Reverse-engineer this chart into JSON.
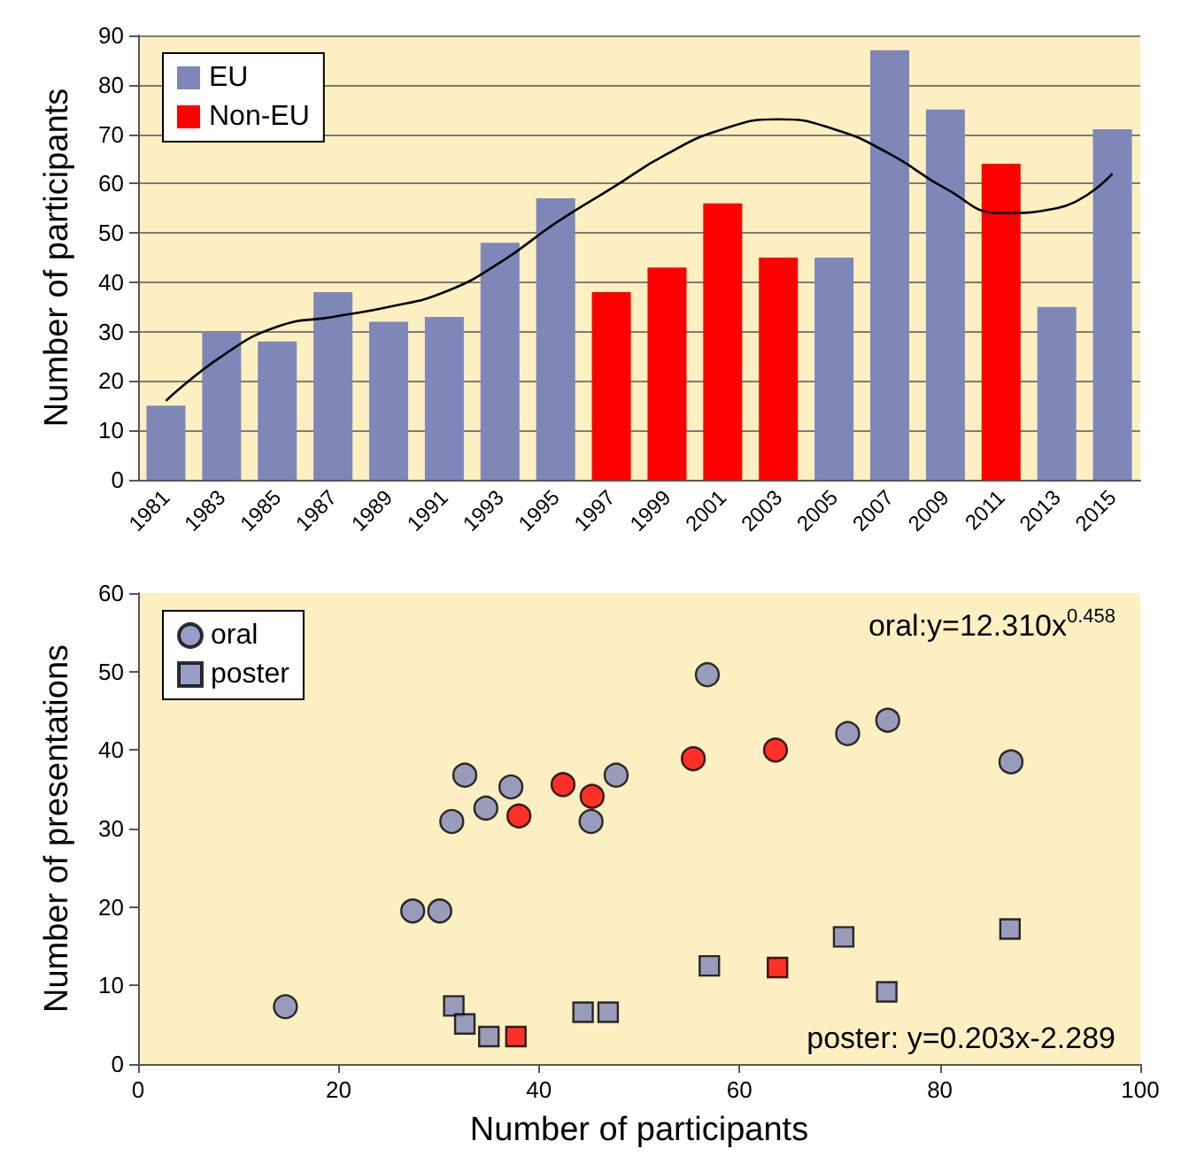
{
  "chart_data": [
    {
      "type": "bar",
      "ylabel": "Number of participants",
      "categories": [
        "1981",
        "1983",
        "1985",
        "1987",
        "1989",
        "1991",
        "1993",
        "1995",
        "1997",
        "1999",
        "2001",
        "2003",
        "2005",
        "2007",
        "2009",
        "2011",
        "2013",
        "2015"
      ],
      "series": [
        {
          "name": "EU",
          "color": "#7f86b8",
          "values": [
            15,
            30,
            28,
            38,
            32,
            33,
            48,
            57,
            null,
            null,
            null,
            null,
            45,
            87,
            75,
            null,
            35,
            71
          ]
        },
        {
          "name": "Non-EU",
          "color": "#ff0000",
          "values": [
            null,
            null,
            null,
            null,
            null,
            null,
            null,
            null,
            38,
            43,
            56,
            45,
            null,
            null,
            null,
            64,
            null,
            null
          ]
        },
        {
          "type": "line",
          "color": "#000000",
          "marker": "none",
          "values": [
            16,
            25,
            31,
            33,
            35,
            38,
            44,
            52,
            59,
            66,
            71,
            73,
            71,
            66,
            59,
            54,
            55,
            62
          ]
        }
      ],
      "ylim": [
        0,
        90
      ],
      "yticks": [
        0,
        10,
        20,
        30,
        40,
        50,
        60,
        70,
        80,
        90
      ],
      "grid": "y",
      "legend": "top left"
    },
    {
      "type": "scatter",
      "xlabel": "Number of participants",
      "ylabel": "Number of presentations",
      "annotations": [
        "oral:y=12.310x$^{0.458}$",
        "poster: y=0.203x-2.289"
      ],
      "series": [
        {
          "name": "oral",
          "color": "#7f86b8",
          "marker": "circle",
          "x": [
            14.7,
            27.4,
            30.1,
            31.3,
            32.6,
            34.7,
            37.2,
            45.2,
            47.7,
            56.8,
            70.8,
            74.8,
            87.1
          ],
          "values": [
            7.3,
            19.5,
            19.5,
            30.9,
            36.8,
            32.6,
            35.3,
            30.9,
            36.8,
            49.6,
            42.1,
            43.8,
            38.5
          ]
        },
        {
          "color": "#ff0000",
          "marker": "circle",
          "x": [
            38.0,
            42.4,
            45.3,
            55.4,
            63.6
          ],
          "values": [
            31.6,
            35.6,
            34.1,
            38.9,
            40.0
          ]
        },
        {
          "name": "poster",
          "color": "#7f86b8",
          "marker": "square",
          "x": [
            31.5,
            32.6,
            35.0,
            44.4,
            46.9,
            57.0,
            70.4,
            74.7,
            87.0
          ],
          "values": [
            7.4,
            5.1,
            3.5,
            6.6,
            6.6,
            12.5,
            16.2,
            9.2,
            17.2
          ]
        },
        {
          "color": "#ff0000",
          "marker": "square",
          "x": [
            37.7,
            63.8
          ],
          "values": [
            3.5,
            12.3
          ]
        }
      ],
      "xlim": [
        0,
        100
      ],
      "xticks": [
        0,
        20,
        40,
        60,
        80,
        100
      ],
      "ylim": [
        0,
        60
      ],
      "yticks": [
        0,
        10,
        20,
        30,
        40,
        50,
        60
      ],
      "grid": false,
      "legend": "top left"
    }
  ]
}
